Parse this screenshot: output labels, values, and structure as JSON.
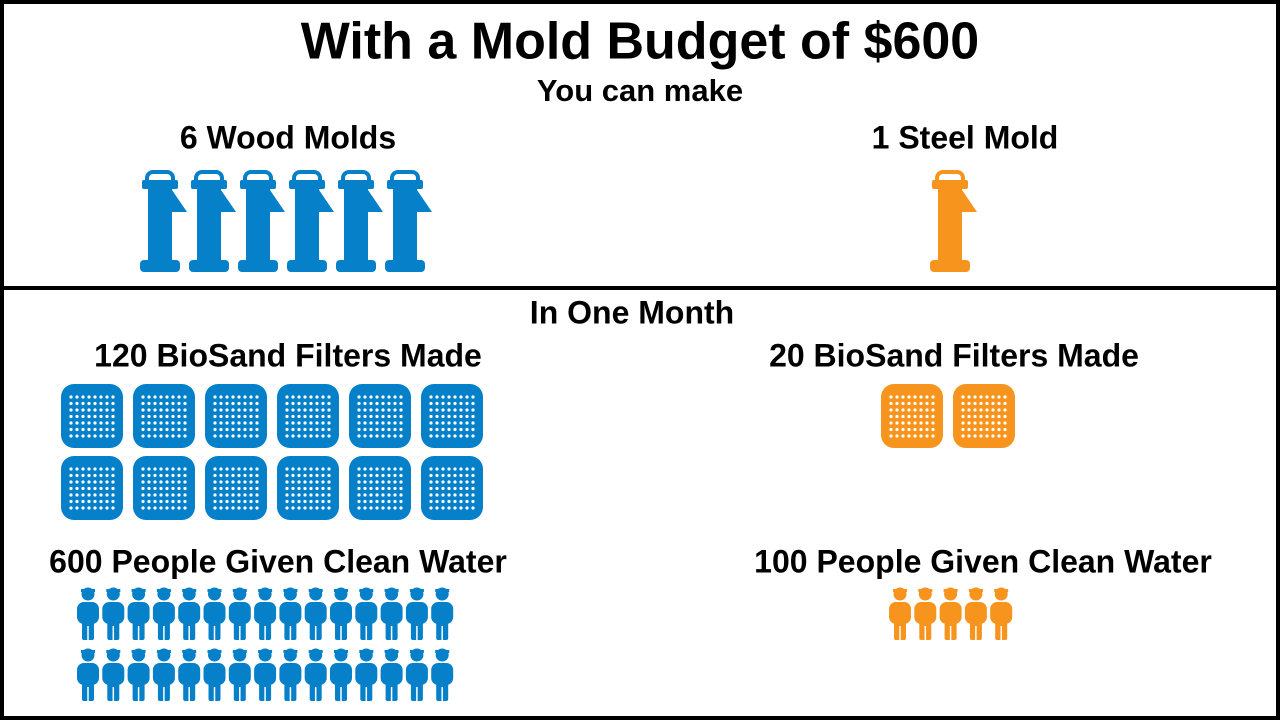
{
  "header": {
    "title": "With a Mold Budget of $600",
    "subtitle": "You can make"
  },
  "molds": [
    {
      "label": "6 Wood Molds",
      "icons": 6,
      "color": "#0681c9"
    },
    {
      "label": "1 Steel Mold",
      "icons": 1,
      "color": "#f7941d"
    }
  ],
  "month": {
    "title": "In One Month",
    "filters": [
      {
        "label": "120 BioSand Filters Made",
        "icons": 12,
        "color": "#0681c9"
      },
      {
        "label": "20 BioSand Filters Made",
        "icons": 2,
        "color": "#f7941d"
      }
    ],
    "people": [
      {
        "label": "600 People Given Clean Water",
        "icons": 30,
        "color": "#0681c9"
      },
      {
        "label": "100 People Given Clean Water",
        "icons": 5,
        "color": "#f7941d"
      }
    ]
  }
}
